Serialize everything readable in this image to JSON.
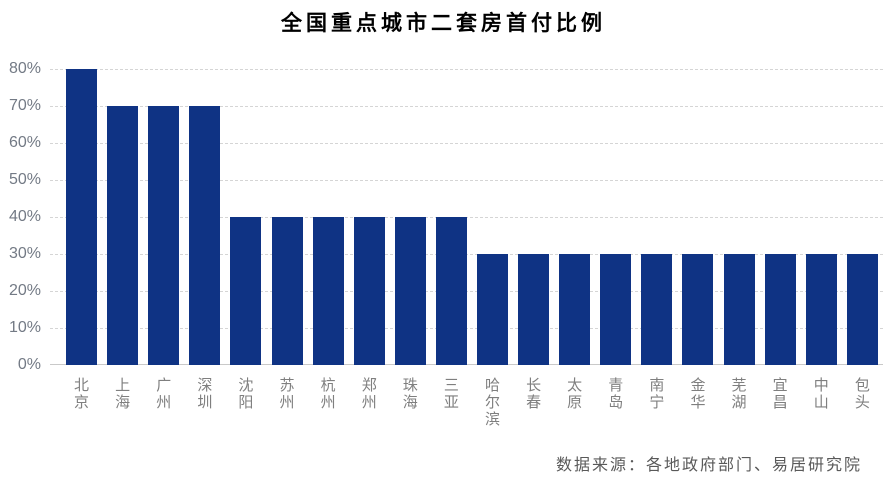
{
  "title": "全国重点城市二套房首付比例",
  "source": "数据来源：各地政府部门、易居研究院",
  "colors": {
    "bar": "#0f3384",
    "gridline": "#d5d5d5",
    "baseline": "#c9c9c9",
    "title_text": "#000000",
    "axis_tick_text": "#737a85",
    "category_text": "#7f7f7f",
    "source_text": "#595959",
    "background": "#ffffff"
  },
  "chart_data": {
    "type": "bar",
    "title": "全国重点城市二套房首付比例",
    "categories": [
      "北京",
      "上海",
      "广州",
      "深圳",
      "沈阳",
      "苏州",
      "杭州",
      "郑州",
      "珠海",
      "三亚",
      "哈尔滨",
      "长春",
      "太原",
      "青岛",
      "南宁",
      "金华",
      "芜湖",
      "宜昌",
      "中山",
      "包头"
    ],
    "values": [
      80,
      70,
      70,
      70,
      40,
      40,
      40,
      40,
      40,
      40,
      30,
      30,
      30,
      30,
      30,
      30,
      30,
      30,
      30,
      30
    ],
    "unit": "%",
    "xlabel": "",
    "ylabel": "",
    "ylim": [
      0,
      80
    ],
    "yticks": [
      "0%",
      "10%",
      "20%",
      "30%",
      "40%",
      "50%",
      "60%",
      "70%",
      "80%"
    ],
    "grid": "horizontal-dashed",
    "legend": "none",
    "annotation": "数据来源：各地政府部门、易居研究院"
  }
}
